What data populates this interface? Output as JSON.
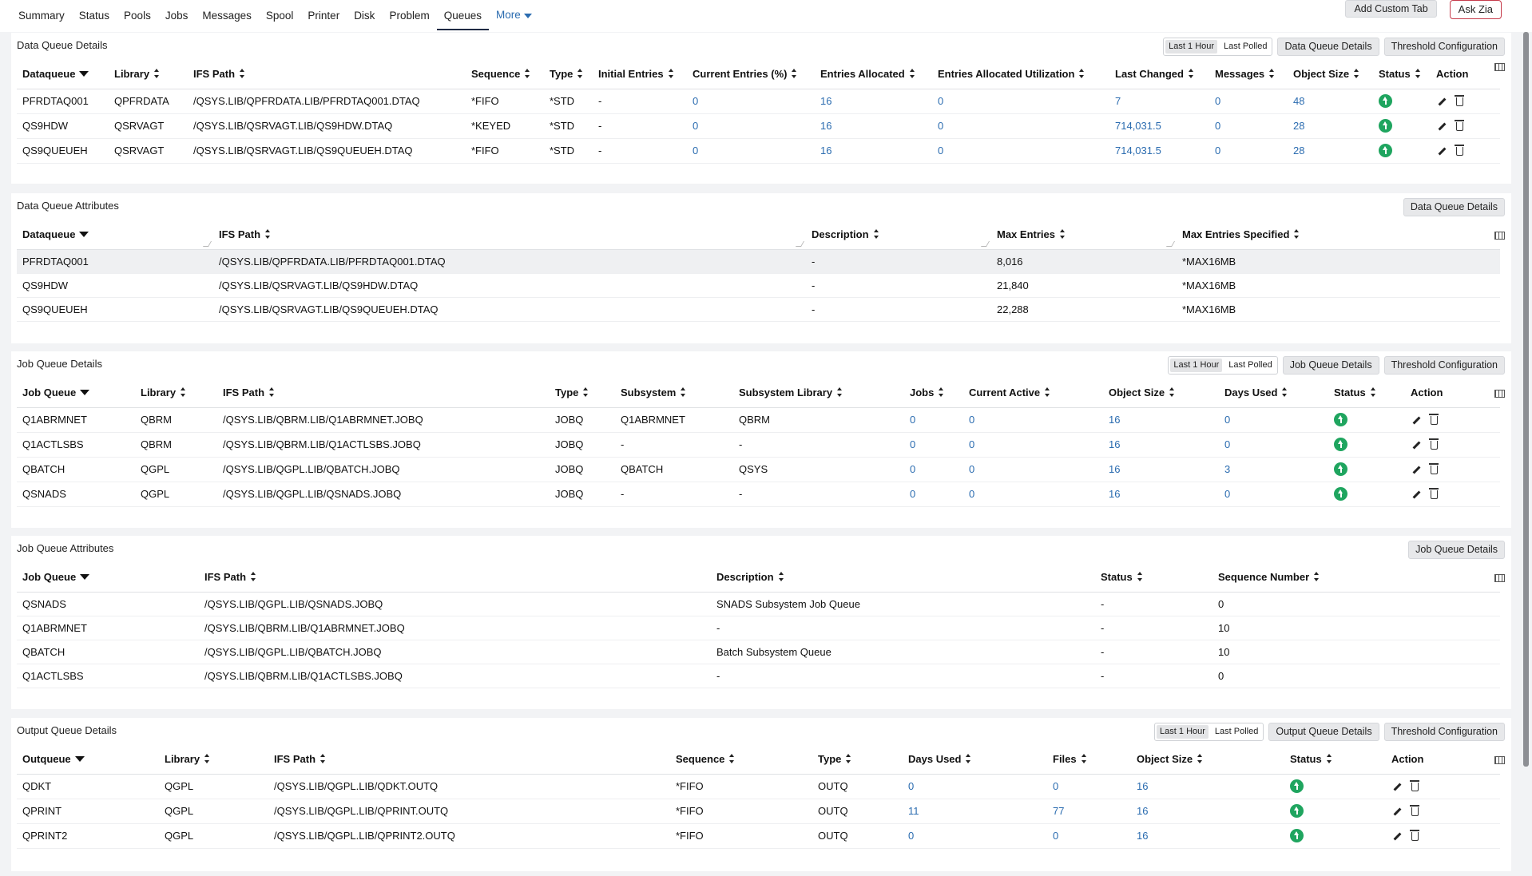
{
  "nav": {
    "tabs": [
      "Summary",
      "Status",
      "Pools",
      "Jobs",
      "Messages",
      "Spool",
      "Printer",
      "Disk",
      "Problem",
      "Queues"
    ],
    "active": "Queues",
    "more_label": "More",
    "add_custom_tab": "Add Custom Tab",
    "ask_zia": "Ask Zia"
  },
  "colors": {
    "link": "#2b6cb0",
    "status_ok": "#1fa55f",
    "zia_border": "#c53a4a"
  },
  "icons": {
    "status": "arrow-up-circle-icon",
    "edit": "pencil-icon",
    "delete": "trash-icon",
    "columns": "column-chooser-icon"
  },
  "dq_details": {
    "title": "Data Queue Details",
    "seg": [
      "Last 1 Hour",
      "Last Polled"
    ],
    "buttons": [
      "Data Queue Details",
      "Threshold Configuration"
    ],
    "headers": [
      "Dataqueue",
      "Library",
      "IFS Path",
      "Sequence",
      "Type",
      "Initial Entries",
      "Current Entries (%)",
      "Entries Allocated",
      "Entries Allocated Utilization",
      "Last Changed",
      "Messages",
      "Object Size",
      "Status",
      "Action"
    ],
    "rows": [
      [
        "PFRDTAQ001",
        "QPFRDATA",
        "/QSYS.LIB/QPFRDATA.LIB/PFRDTAQ001.DTAQ",
        "*FIFO",
        "*STD",
        "-",
        "0",
        "16",
        "0",
        "7",
        "0",
        "48"
      ],
      [
        "QS9HDW",
        "QSRVAGT",
        "/QSYS.LIB/QSRVAGT.LIB/QS9HDW.DTAQ",
        "*KEYED",
        "*STD",
        "-",
        "0",
        "16",
        "0",
        "714,031.5",
        "0",
        "28"
      ],
      [
        "QS9QUEUEH",
        "QSRVAGT",
        "/QSYS.LIB/QSRVAGT.LIB/QS9QUEUEH.DTAQ",
        "*FIFO",
        "*STD",
        "-",
        "0",
        "16",
        "0",
        "714,031.5",
        "0",
        "28"
      ]
    ]
  },
  "dq_attr": {
    "title": "Data Queue Attributes",
    "buttons": [
      "Data Queue Details"
    ],
    "headers": [
      "Dataqueue",
      "IFS Path",
      "Description",
      "Max Entries",
      "Max Entries Specified"
    ],
    "rows": [
      [
        "PFRDTAQ001",
        "/QSYS.LIB/QPFRDATA.LIB/PFRDTAQ001.DTAQ",
        "-",
        "8,016",
        "*MAX16MB"
      ],
      [
        "QS9HDW",
        "/QSYS.LIB/QSRVAGT.LIB/QS9HDW.DTAQ",
        "-",
        "21,840",
        "*MAX16MB"
      ],
      [
        "QS9QUEUEH",
        "/QSYS.LIB/QSRVAGT.LIB/QS9QUEUEH.DTAQ",
        "-",
        "22,288",
        "*MAX16MB"
      ]
    ]
  },
  "jq_details": {
    "title": "Job Queue Details",
    "seg": [
      "Last 1 Hour",
      "Last Polled"
    ],
    "buttons": [
      "Job Queue Details",
      "Threshold Configuration"
    ],
    "headers": [
      "Job Queue",
      "Library",
      "IFS Path",
      "Type",
      "Subsystem",
      "Subsystem Library",
      "Jobs",
      "Current Active",
      "Object Size",
      "Days Used",
      "Status",
      "Action"
    ],
    "rows": [
      [
        "Q1ABRMNET",
        "QBRM",
        "/QSYS.LIB/QBRM.LIB/Q1ABRMNET.JOBQ",
        "JOBQ",
        "Q1ABRMNET",
        "QBRM",
        "0",
        "0",
        "16",
        "0"
      ],
      [
        "Q1ACTLSBS",
        "QBRM",
        "/QSYS.LIB/QBRM.LIB/Q1ACTLSBS.JOBQ",
        "JOBQ",
        "-",
        "-",
        "0",
        "0",
        "16",
        "0"
      ],
      [
        "QBATCH",
        "QGPL",
        "/QSYS.LIB/QGPL.LIB/QBATCH.JOBQ",
        "JOBQ",
        "QBATCH",
        "QSYS",
        "0",
        "0",
        "16",
        "3"
      ],
      [
        "QSNADS",
        "QGPL",
        "/QSYS.LIB/QGPL.LIB/QSNADS.JOBQ",
        "JOBQ",
        "-",
        "-",
        "0",
        "0",
        "16",
        "0"
      ]
    ]
  },
  "jq_attr": {
    "title": "Job Queue Attributes",
    "buttons": [
      "Job Queue Details"
    ],
    "headers": [
      "Job Queue",
      "IFS Path",
      "Description",
      "Status",
      "Sequence Number"
    ],
    "rows": [
      [
        "QSNADS",
        "/QSYS.LIB/QGPL.LIB/QSNADS.JOBQ",
        "SNADS Subsystem Job Queue",
        "-",
        "0"
      ],
      [
        "Q1ABRMNET",
        "/QSYS.LIB/QBRM.LIB/Q1ABRMNET.JOBQ",
        "-",
        "-",
        "10"
      ],
      [
        "QBATCH",
        "/QSYS.LIB/QGPL.LIB/QBATCH.JOBQ",
        "Batch Subsystem Queue",
        "-",
        "10"
      ],
      [
        "Q1ACTLSBS",
        "/QSYS.LIB/QBRM.LIB/Q1ACTLSBS.JOBQ",
        "-",
        "-",
        "0"
      ]
    ]
  },
  "oq_details": {
    "title": "Output Queue Details",
    "seg": [
      "Last 1 Hour",
      "Last Polled"
    ],
    "buttons": [
      "Output Queue Details",
      "Threshold Configuration"
    ],
    "headers": [
      "Outqueue",
      "Library",
      "IFS Path",
      "Sequence",
      "Type",
      "Days Used",
      "Files",
      "Object Size",
      "Status",
      "Action"
    ],
    "rows": [
      [
        "QDKT",
        "QGPL",
        "/QSYS.LIB/QGPL.LIB/QDKT.OUTQ",
        "*FIFO",
        "OUTQ",
        "0",
        "0",
        "16"
      ],
      [
        "QPRINT",
        "QGPL",
        "/QSYS.LIB/QGPL.LIB/QPRINT.OUTQ",
        "*FIFO",
        "OUTQ",
        "11",
        "77",
        "16"
      ],
      [
        "QPRINT2",
        "QGPL",
        "/QSYS.LIB/QGPL.LIB/QPRINT2.OUTQ",
        "*FIFO",
        "OUTQ",
        "0",
        "0",
        "16"
      ]
    ]
  }
}
